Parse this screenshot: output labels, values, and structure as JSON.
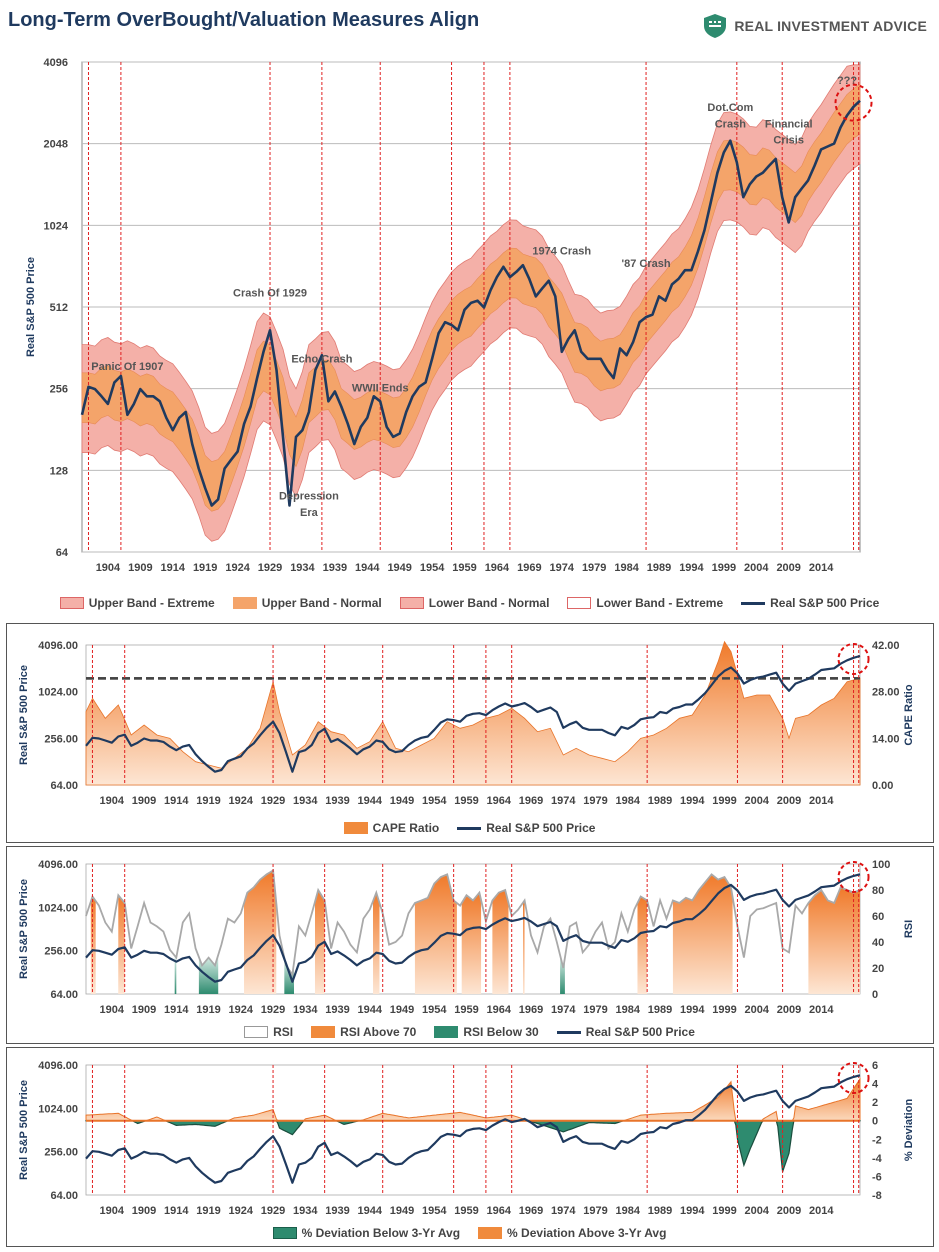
{
  "header": {
    "title": "Long-Term OverBought/Valuation Measures Align",
    "brand": "REAL INVESTMENT ADVICE"
  },
  "colors": {
    "navy": "#1f3a5f",
    "orange": "#f08a3c",
    "band_extreme": "#f4b0a8",
    "band_normal": "#f4a46a",
    "green": "#2e8b6f",
    "grey": "#999999",
    "red_line": "#e02020"
  },
  "x_ticks": [
    "1904",
    "1909",
    "1914",
    "1919",
    "1924",
    "1929",
    "1934",
    "1939",
    "1944",
    "1949",
    "1954",
    "1959",
    "1964",
    "1969",
    "1974",
    "1979",
    "1984",
    "1989",
    "1994",
    "1999",
    "2004",
    "2009",
    "2014"
  ],
  "event_years": [
    1901,
    1906,
    1929,
    1937,
    1946,
    1957,
    1962,
    1966,
    1987,
    2001,
    2008,
    2019,
    2019.8
  ],
  "chart_data": [
    {
      "type": "line",
      "title": "Long-Term OverBought/Valuation Measures Align",
      "ylabel": "Real S&P 500 Price",
      "y_scale": "log2",
      "ylim": [
        64,
        4096
      ],
      "y_ticks": [
        "4096",
        "2048",
        "1024",
        "512",
        "256",
        "128",
        "64"
      ],
      "xlim": [
        1900,
        2020
      ],
      "annotations": [
        {
          "text": "Panic Of 1907",
          "x": 1907,
          "y": 300
        },
        {
          "text": "Crash Of 1929",
          "x": 1929,
          "y": 560
        },
        {
          "text": "Echo Crash",
          "x": 1937,
          "y": 320
        },
        {
          "text": "WWII Ends",
          "x": 1946,
          "y": 250
        },
        {
          "text": "Depression",
          "x": 1935,
          "y": 100
        },
        {
          "text": "Era",
          "x": 1935,
          "y": 87
        },
        {
          "text": "1974 Crash",
          "x": 1974,
          "y": 800
        },
        {
          "text": "'87 Crash",
          "x": 1987,
          "y": 720
        },
        {
          "text": "Dot.Com",
          "x": 2000,
          "y": 2700
        },
        {
          "text": "Crash",
          "x": 2000,
          "y": 2350
        },
        {
          "text": "Financial",
          "x": 2009,
          "y": 2350
        },
        {
          "text": "Crisis",
          "x": 2009,
          "y": 2050
        },
        {
          "text": "???",
          "x": 2018,
          "y": 3400
        }
      ],
      "series": [
        {
          "name": "Upper Band - Extreme"
        },
        {
          "name": "Upper Band - Normal"
        },
        {
          "name": "Lower Band - Normal"
        },
        {
          "name": "Lower Band - Extreme"
        },
        {
          "name": "Real S&P 500 Price",
          "x": [
            1900,
            1901,
            1902,
            1903,
            1904,
            1905,
            1906,
            1907,
            1908,
            1909,
            1910,
            1911,
            1912,
            1913,
            1914,
            1915,
            1916,
            1917,
            1918,
            1919,
            1920,
            1921,
            1922,
            1923,
            1924,
            1925,
            1926,
            1927,
            1928,
            1929,
            1930,
            1931,
            1932,
            1933,
            1934,
            1935,
            1936,
            1937,
            1938,
            1939,
            1940,
            1941,
            1942,
            1943,
            1944,
            1945,
            1946,
            1947,
            1948,
            1949,
            1950,
            1951,
            1952,
            1953,
            1954,
            1955,
            1956,
            1957,
            1958,
            1959,
            1960,
            1961,
            1962,
            1963,
            1964,
            1965,
            1966,
            1967,
            1968,
            1969,
            1970,
            1971,
            1972,
            1973,
            1974,
            1975,
            1976,
            1977,
            1978,
            1979,
            1980,
            1981,
            1982,
            1983,
            1984,
            1985,
            1986,
            1987,
            1988,
            1989,
            1990,
            1991,
            1992,
            1993,
            1994,
            1995,
            1996,
            1997,
            1998,
            1999,
            2000,
            2001,
            2002,
            2003,
            2004,
            2005,
            2006,
            2007,
            2008,
            2009,
            2010,
            2011,
            2012,
            2013,
            2014,
            2015,
            2016,
            2017,
            2018,
            2019,
            2020
          ],
          "values": [
            205,
            260,
            255,
            240,
            225,
            270,
            285,
            205,
            225,
            255,
            240,
            240,
            230,
            200,
            180,
            200,
            210,
            160,
            130,
            110,
            95,
            100,
            130,
            140,
            150,
            190,
            220,
            280,
            350,
            420,
            300,
            170,
            95,
            170,
            180,
            210,
            300,
            340,
            230,
            250,
            220,
            190,
            160,
            185,
            200,
            240,
            230,
            185,
            170,
            175,
            210,
            240,
            260,
            270,
            330,
            410,
            450,
            440,
            420,
            500,
            530,
            540,
            510,
            590,
            660,
            720,
            660,
            690,
            730,
            650,
            560,
            600,
            640,
            560,
            350,
            390,
            420,
            350,
            330,
            330,
            330,
            300,
            280,
            360,
            340,
            380,
            450,
            470,
            480,
            560,
            540,
            620,
            650,
            700,
            700,
            820,
            980,
            1250,
            1600,
            1900,
            2100,
            1750,
            1300,
            1450,
            1550,
            1600,
            1700,
            1800,
            1300,
            1050,
            1300,
            1400,
            1500,
            1700,
            1950,
            2000,
            2050,
            2350,
            2600,
            2800,
            2950
          ]
        }
      ]
    },
    {
      "type": "area",
      "ylabel_left": "Real S&P 500 Price",
      "ylabel_right": "CAPE Ratio",
      "ylim_left": [
        64,
        4096
      ],
      "ylim_right": [
        0,
        42
      ],
      "y_ticks_left": [
        "4096.00",
        "1024.00",
        "256.00",
        "64.00"
      ],
      "y_ticks_right": [
        "42.00",
        "28.00",
        "14.00",
        "0.00"
      ],
      "series": [
        {
          "name": "CAPE Ratio",
          "x": [
            1900,
            1901,
            1903,
            1905,
            1907,
            1909,
            1911,
            1913,
            1915,
            1917,
            1919,
            1921,
            1923,
            1925,
            1927,
            1929,
            1930,
            1932,
            1934,
            1936,
            1938,
            1940,
            1942,
            1944,
            1946,
            1948,
            1950,
            1952,
            1954,
            1956,
            1958,
            1960,
            1962,
            1964,
            1966,
            1968,
            1970,
            1972,
            1974,
            1976,
            1978,
            1980,
            1982,
            1984,
            1986,
            1988,
            1990,
            1992,
            1994,
            1996,
            1998,
            1999,
            2000,
            2001,
            2002,
            2004,
            2006,
            2008,
            2009,
            2010,
            2012,
            2014,
            2016,
            2018,
            2020
          ],
          "values": [
            22,
            26,
            20,
            24,
            15,
            18,
            15,
            14,
            10,
            7,
            6,
            5,
            8,
            11,
            17,
            31,
            22,
            9,
            12,
            19,
            16,
            15,
            11,
            13,
            19,
            11,
            10,
            12,
            14,
            19,
            17,
            18,
            20,
            21,
            23,
            20,
            16,
            17,
            9,
            11,
            9,
            8,
            7,
            10,
            14,
            15,
            17,
            20,
            21,
            27,
            37,
            43,
            40,
            33,
            26,
            27,
            27,
            20,
            14,
            20,
            21,
            24,
            26,
            31,
            32
          ]
        },
        {
          "name": "Real S&P 500 Price"
        }
      ],
      "reference_line": {
        "y": 32,
        "style": "dashed"
      }
    },
    {
      "type": "area",
      "ylabel_left": "Real S&P 500 Price",
      "ylabel_right": "RSI",
      "ylim_left": [
        64,
        4096
      ],
      "ylim_right": [
        0,
        100
      ],
      "y_ticks_left": [
        "4096.00",
        "1024.00",
        "256.00",
        "64.00"
      ],
      "y_ticks_right": [
        "100",
        "80",
        "60",
        "40",
        "20",
        "0"
      ],
      "series": [
        {
          "name": "RSI",
          "x": [
            1900,
            1901,
            1902,
            1903,
            1904,
            1905,
            1906,
            1907,
            1908,
            1909,
            1910,
            1911,
            1912,
            1913,
            1914,
            1915,
            1916,
            1917,
            1918,
            1919,
            1920,
            1921,
            1922,
            1923,
            1924,
            1925,
            1926,
            1927,
            1928,
            1929,
            1930,
            1931,
            1932,
            1933,
            1934,
            1935,
            1936,
            1937,
            1938,
            1939,
            1940,
            1941,
            1942,
            1943,
            1944,
            1945,
            1946,
            1947,
            1948,
            1949,
            1950,
            1951,
            1952,
            1953,
            1954,
            1955,
            1956,
            1957,
            1958,
            1959,
            1960,
            1961,
            1962,
            1963,
            1964,
            1965,
            1966,
            1967,
            1968,
            1969,
            1970,
            1971,
            1972,
            1973,
            1974,
            1975,
            1976,
            1977,
            1978,
            1979,
            1980,
            1981,
            1982,
            1983,
            1984,
            1985,
            1986,
            1987,
            1988,
            1989,
            1990,
            1991,
            1992,
            1993,
            1994,
            1995,
            1996,
            1997,
            1998,
            1999,
            2000,
            2001,
            2002,
            2003,
            2004,
            2005,
            2006,
            2007,
            2008,
            2009,
            2010,
            2011,
            2012,
            2013,
            2014,
            2015,
            2016,
            2017,
            2018,
            2019,
            2020
          ],
          "values": [
            60,
            75,
            68,
            55,
            48,
            76,
            70,
            35,
            52,
            70,
            55,
            52,
            48,
            34,
            28,
            55,
            62,
            35,
            22,
            28,
            22,
            38,
            58,
            55,
            62,
            78,
            82,
            88,
            92,
            95,
            45,
            22,
            15,
            52,
            45,
            62,
            80,
            72,
            35,
            55,
            48,
            38,
            32,
            58,
            65,
            78,
            62,
            38,
            40,
            45,
            62,
            70,
            72,
            74,
            85,
            90,
            92,
            72,
            68,
            76,
            72,
            78,
            56,
            72,
            78,
            80,
            60,
            65,
            72,
            45,
            32,
            52,
            58,
            40,
            20,
            52,
            55,
            32,
            38,
            48,
            55,
            35,
            40,
            62,
            48,
            65,
            75,
            72,
            52,
            72,
            58,
            72,
            70,
            74,
            72,
            80,
            86,
            92,
            88,
            90,
            82,
            52,
            28,
            60,
            65,
            66,
            68,
            70,
            35,
            32,
            68,
            62,
            70,
            76,
            80,
            72,
            70,
            82,
            80,
            78,
            80
          ]
        },
        {
          "name": "RSI Above 70",
          "threshold": 70
        },
        {
          "name": "RSI Below 30",
          "threshold": 30
        },
        {
          "name": "Real S&P 500 Price"
        }
      ]
    },
    {
      "type": "area",
      "ylabel_left": "Real S&P 500 Price",
      "ylabel_right": "% Deviation",
      "ylim_left": [
        64,
        4096
      ],
      "ylim_right": [
        -8,
        6
      ],
      "y_ticks_left": [
        "4096.00",
        "1024.00",
        "256.00",
        "64.00"
      ],
      "y_ticks_right": [
        "6",
        "4",
        "2",
        "0",
        "-2",
        "-4",
        "-6",
        "-8"
      ],
      "series": [
        {
          "name": "% Deviation Below 3-Yr Avg",
          "x": [
            1900,
            1905,
            1908,
            1911,
            1914,
            1917,
            1920,
            1923,
            1926,
            1929,
            1930,
            1932,
            1934,
            1937,
            1940,
            1943,
            1946,
            1950,
            1954,
            1958,
            1962,
            1966,
            1970,
            1974,
            1978,
            1982,
            1986,
            1990,
            1994,
            1998,
            2000,
            2001,
            2002,
            2003,
            2005,
            2007,
            2008,
            2009,
            2010,
            2012,
            2015,
            2018,
            2020
          ],
          "values": [
            0.6,
            0.8,
            -0.3,
            0.4,
            -0.5,
            -0.4,
            -0.6,
            0.3,
            0.6,
            1.2,
            -0.8,
            -1.5,
            0.2,
            0.6,
            -0.4,
            0.1,
            0.8,
            0.3,
            0.6,
            0.9,
            0.3,
            0.6,
            -0.3,
            -1.2,
            -0.2,
            -0.3,
            0.6,
            0.8,
            0.9,
            2.5,
            4.2,
            -2.0,
            -4.8,
            -3.0,
            0.2,
            1.0,
            -5.5,
            -3.5,
            1.6,
            1.2,
            1.8,
            2.4,
            4.5
          ]
        },
        {
          "name": "% Deviation Above 3-Yr Avg"
        },
        {
          "name": "Real S&P 500 Price"
        }
      ]
    }
  ]
}
